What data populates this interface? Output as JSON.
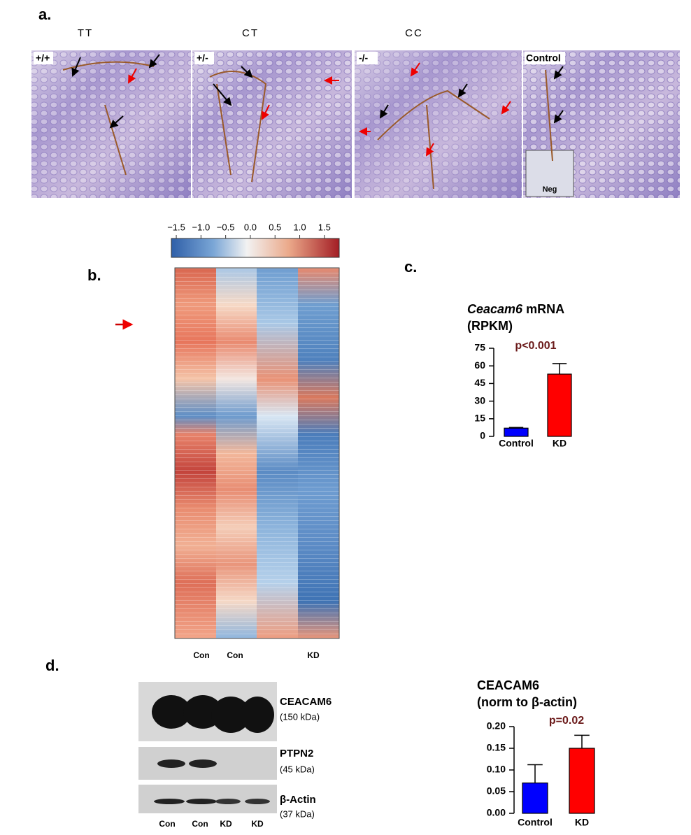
{
  "panel_labels": {
    "a": "a.",
    "b": "b.",
    "c": "c.",
    "d": "d."
  },
  "histology": {
    "genotypes": [
      "TT",
      "CT",
      "CC"
    ],
    "images": [
      "+/+",
      "+/-",
      "-/-",
      "Control"
    ],
    "inset": "Neg"
  },
  "heatmap": {
    "colorbar_lim": [
      -1.6,
      1.8
    ],
    "colorbar_ticks": [
      {
        "value": -1.5,
        "label": "−1.5"
      },
      {
        "value": -1.0,
        "label": "−1.0"
      },
      {
        "value": -0.5,
        "label": "−0.5"
      },
      {
        "value": 0,
        "label": "0.0"
      },
      0.5,
      {
        "value": 1.0,
        "label": "1.0"
      },
      1.5
    ],
    "columns": [
      "Con",
      "Con",
      "KD"
    ]
  },
  "chart_c": {
    "type": "bar",
    "title": [
      "Ceacam6",
      "mRNA"
    ],
    "subtitle": "(RPKM)",
    "annotation": "p<0.001",
    "categories": [
      "Control",
      "KD"
    ],
    "values": [
      7,
      53
    ],
    "errors": [
      0.6,
      9
    ],
    "colors": [
      "#0000ff",
      "#ff0000"
    ],
    "ylim": [
      0,
      75
    ],
    "yticks": [
      0,
      15,
      30,
      45,
      60,
      75
    ]
  },
  "blot": {
    "bands": [
      {
        "name": "CEACAM6",
        "size": "(150 kDa)"
      },
      {
        "name": "PTPN2",
        "size": "(45 kDa)"
      },
      {
        "name": "β-Actin",
        "size": "(37 kDa)"
      }
    ],
    "lanes": [
      "Con",
      "Con",
      "KD",
      "KD"
    ]
  },
  "chart_d": {
    "type": "bar",
    "title": "CEACAM6",
    "subtitle": "(norm to β-actin)",
    "annotation": "p=0.02",
    "categories": [
      "Control",
      "KD"
    ],
    "values": [
      0.07,
      0.15
    ],
    "errors": [
      0.042,
      0.03
    ],
    "colors": [
      "#0000ff",
      "#ff0000"
    ],
    "ylim": [
      0,
      0.2
    ],
    "yticks": [
      {
        "value": 0,
        "label": "0.00"
      },
      {
        "value": 0.05,
        "label": "0.05"
      },
      {
        "value": 0.1,
        "label": "0.10"
      },
      {
        "value": 0.15,
        "label": "0.15"
      },
      {
        "value": 0.2,
        "label": "0.20"
      }
    ]
  }
}
